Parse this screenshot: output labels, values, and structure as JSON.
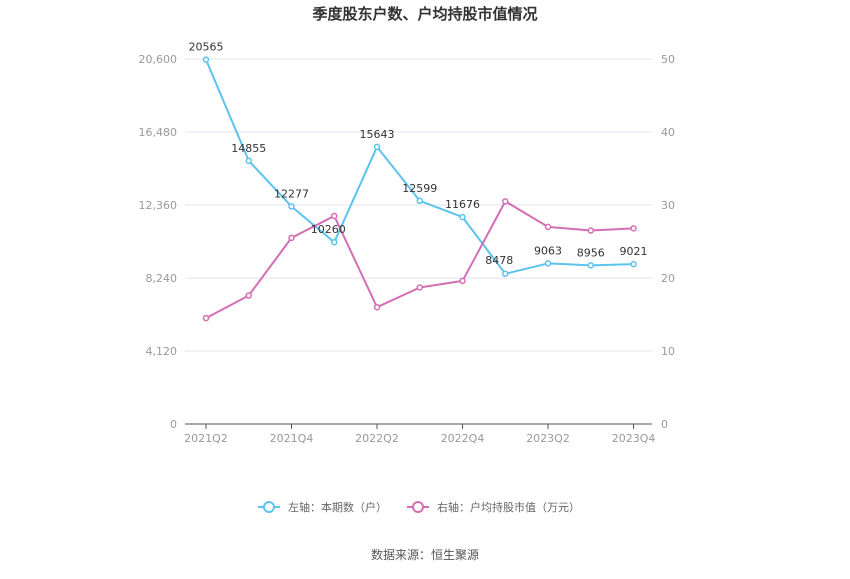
{
  "chart_data": {
    "type": "line",
    "title": "季度股东户数、户均持股市值情况",
    "categories": [
      "2021Q2",
      "2021Q3",
      "2021Q4",
      "2022Q1",
      "2022Q2",
      "2022Q3",
      "2022Q4",
      "2023Q1",
      "2023Q2",
      "2023Q3",
      "2023Q4"
    ],
    "x_tick_labels": [
      "2021Q2",
      "2021Q4",
      "2022Q2",
      "2022Q4",
      "2023Q2",
      "2023Q4"
    ],
    "left_axis": {
      "ylim": [
        0,
        20600
      ],
      "ticks": [
        "0",
        "4,120",
        "8,240",
        "12,360",
        "16,480",
        "20,600"
      ]
    },
    "right_axis": {
      "ylim": [
        0,
        50
      ],
      "ticks": [
        "0",
        "10",
        "20",
        "30",
        "40",
        "50"
      ]
    },
    "series": [
      {
        "name": "左轴：本期数（户）",
        "axis": "left",
        "color": "#5bc3ee",
        "values": [
          20565,
          14855,
          12277,
          10260,
          15643,
          12599,
          11676,
          8478,
          9063,
          8956,
          9021
        ],
        "labels": [
          "20565",
          "14855",
          "12277",
          "10260",
          "15643",
          "12599",
          "11676",
          "8478",
          "9063",
          "8956",
          "9021"
        ]
      },
      {
        "name": "右轴：户均持股市值（万元）",
        "axis": "right",
        "color": "#d46eb4",
        "values": [
          14.5,
          17.6,
          25.5,
          28.5,
          16.0,
          18.7,
          19.6,
          30.5,
          27.0,
          26.5,
          26.8
        ]
      }
    ],
    "grid": true,
    "legend_position": "bottom"
  },
  "footer": {
    "source": "数据来源：恒生聚源"
  }
}
